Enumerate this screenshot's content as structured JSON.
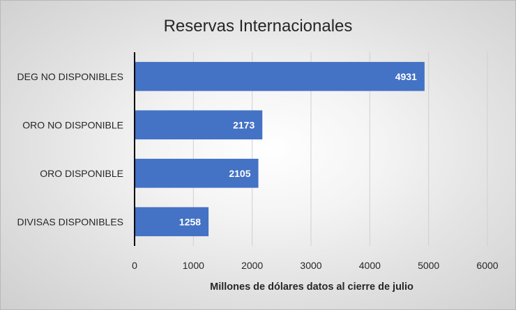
{
  "chart_data": {
    "type": "bar",
    "orientation": "horizontal",
    "title": "Reservas Internacionales",
    "xlabel": "Millones de dólares datos al cierre de julio",
    "ylabel": "",
    "categories": [
      "DEG NO DISPONIBLES",
      "ORO NO DISPONIBLE",
      "ORO DISPONIBLE",
      "DIVISAS DISPONIBLES"
    ],
    "values": [
      4931,
      2173,
      2105,
      1258
    ],
    "xlim": [
      0,
      6000
    ],
    "xticks": [
      "0",
      "1000",
      "2000",
      "3000",
      "4000",
      "5000",
      "6000"
    ],
    "grid": "vertical",
    "legend": "none",
    "bar_color": "#4472c4",
    "data_labels": true
  }
}
